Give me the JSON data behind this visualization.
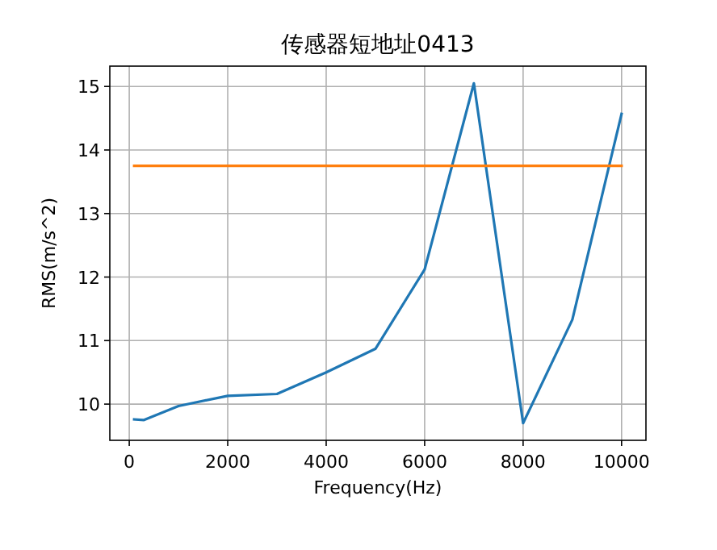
{
  "chart_data": {
    "type": "line",
    "title": "传感器短地址0413",
    "xlabel": "Frequency(Hz)",
    "ylabel": "RMS(m/s^2)",
    "xlim": [
      -395,
      10495
    ],
    "ylim": [
      9.43,
      15.32
    ],
    "xticks": [
      0,
      2000,
      4000,
      6000,
      8000,
      10000
    ],
    "yticks": [
      10,
      11,
      12,
      13,
      14,
      15
    ],
    "grid": true,
    "series": [
      {
        "color": "#1f77b4",
        "x": [
          100,
          300,
          1000,
          2000,
          3000,
          4000,
          5000,
          6000,
          7000,
          8000,
          9000,
          10000
        ],
        "values": [
          9.76,
          9.75,
          9.97,
          10.13,
          10.16,
          10.5,
          10.87,
          12.12,
          15.05,
          9.7,
          11.33,
          14.57
        ]
      },
      {
        "color": "#ff7f0e",
        "x": [
          100,
          10000
        ],
        "values": [
          13.75,
          13.75
        ]
      }
    ]
  }
}
